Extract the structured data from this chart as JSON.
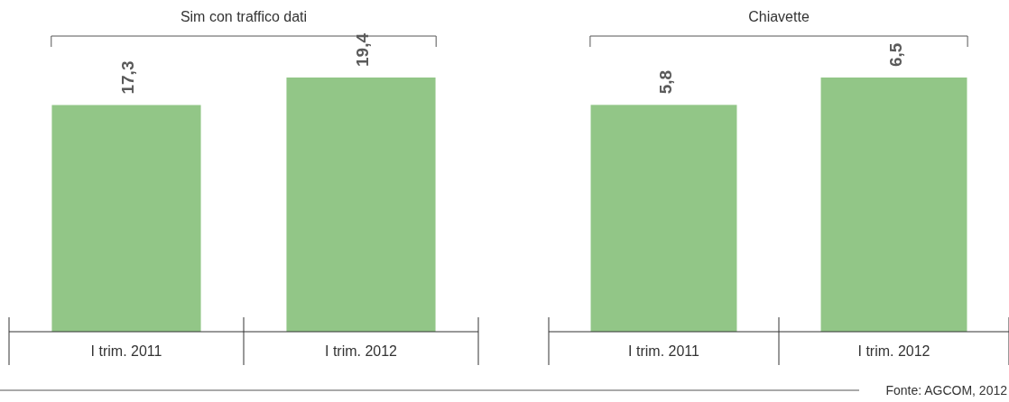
{
  "chart_data": [
    {
      "type": "bar",
      "title": "Sim con traffico dati",
      "categories": [
        "I trim. 2011",
        "I trim. 2012"
      ],
      "values": [
        17.3,
        19.4
      ],
      "value_labels": [
        "17,3",
        "19,4"
      ],
      "color": "#92c687",
      "tick_labels": "x"
    },
    {
      "type": "bar",
      "title": "Chiavette",
      "categories": [
        "I trim. 2011",
        "I trim. 2012"
      ],
      "values": [
        5.8,
        6.5
      ],
      "value_labels": [
        "5,8",
        "6,5"
      ],
      "color": "#92c687",
      "tick_labels": "x",
      "annotations": [
        "Fonte:  AGCOM, 2012"
      ]
    }
  ]
}
